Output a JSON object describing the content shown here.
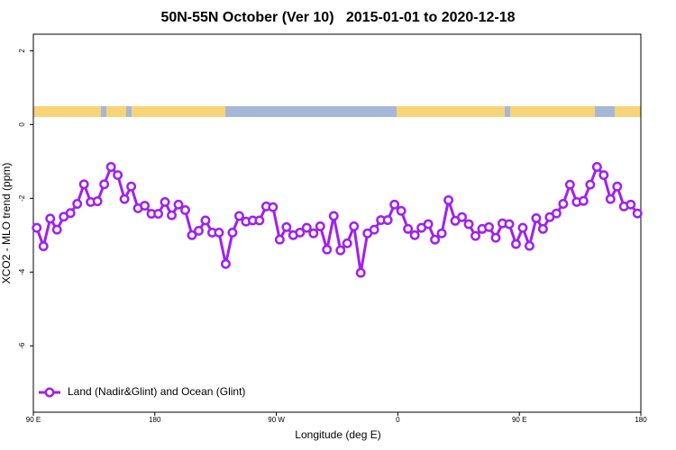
{
  "chart_data": {
    "type": "line",
    "title": "50N-55N October (Ver 10)   2015-01-01 to 2020-12-18",
    "x_label": "Longitude (deg E)",
    "y_label": "XCO2 - MLO trend (ppm)",
    "xlim": [
      90,
      540
    ],
    "ylim": [
      -7.8,
      2.45
    ],
    "xticks": [
      {
        "value": 90,
        "label": "90 E"
      },
      180,
      {
        "value": 270,
        "label": "90 W"
      },
      {
        "value": 360,
        "label": "0"
      },
      {
        "value": 450,
        "label": "90 E"
      },
      {
        "value": 540,
        "label": "180"
      }
    ],
    "yticks": [
      2,
      0,
      -2,
      -4,
      -6
    ],
    "legend": "bottom-left",
    "x": [
      92.5,
      97.5,
      102.5,
      107.5,
      112.5,
      117.5,
      122.5,
      127.5,
      132.5,
      137.5,
      142.5,
      147.5,
      152.5,
      157.5,
      162.5,
      167.5,
      172.5,
      177.5,
      182.5,
      187.5,
      192.5,
      197.5,
      202.5,
      207.5,
      212.5,
      217.5,
      222.5,
      227.5,
      232.5,
      237.5,
      242.5,
      247.5,
      252.5,
      257.5,
      262.5,
      267.5,
      272.5,
      277.5,
      282.5,
      287.5,
      292.5,
      297.5,
      302.5,
      307.5,
      312.5,
      317.5,
      322.5,
      327.5,
      332.5,
      337.5,
      342.5,
      347.5,
      352.5,
      357.5,
      362.5,
      367.5,
      372.5,
      377.5,
      382.5,
      387.5,
      392.5,
      397.5,
      402.5,
      407.5,
      412.5,
      417.5,
      422.5,
      427.5,
      432.5,
      437.5,
      442.5,
      447.5,
      452.5,
      457.5,
      462.5,
      467.5,
      472.5,
      477.5,
      482.5,
      487.5,
      492.5,
      497.5,
      502.5,
      507.5,
      512.5,
      517.5,
      522.5,
      527.5,
      532.5,
      537.5
    ],
    "series": [
      {
        "name": "Land (Nadir&Glint) and Ocean (Glint)",
        "color": "#a020f0",
        "values": [
          -2.8,
          -3.3,
          -2.55,
          -2.85,
          -2.5,
          -2.4,
          -2.15,
          -1.62,
          -2.1,
          -2.08,
          -1.62,
          -1.15,
          -1.37,
          -2.02,
          -1.68,
          -2.27,
          -2.2,
          -2.42,
          -2.42,
          -2.1,
          -2.46,
          -2.17,
          -2.32,
          -3.0,
          -2.88,
          -2.6,
          -2.93,
          -2.93,
          -3.78,
          -2.93,
          -2.48,
          -2.63,
          -2.6,
          -2.6,
          -2.22,
          -2.24,
          -3.12,
          -2.78,
          -3.0,
          -2.93,
          -2.8,
          -2.95,
          -2.76,
          -3.39,
          -2.48,
          -3.41,
          -3.22,
          -2.76,
          -4.02,
          -2.95,
          -2.85,
          -2.59,
          -2.59,
          -2.17,
          -2.34,
          -2.83,
          -3.0,
          -2.8,
          -2.7,
          -3.12,
          -2.95,
          -2.05,
          -2.61,
          -2.51,
          -2.7,
          -3.02,
          -2.83,
          -2.78,
          -3.07,
          -2.68,
          -2.7,
          -3.24,
          -2.8,
          -3.29,
          -2.54,
          -2.83,
          -2.51,
          -2.41,
          -2.15,
          -1.63,
          -2.1,
          -2.07,
          -1.63,
          -1.15,
          -1.37,
          -2.02,
          -1.68,
          -2.22,
          -2.17,
          -2.41
        ]
      }
    ]
  }
}
